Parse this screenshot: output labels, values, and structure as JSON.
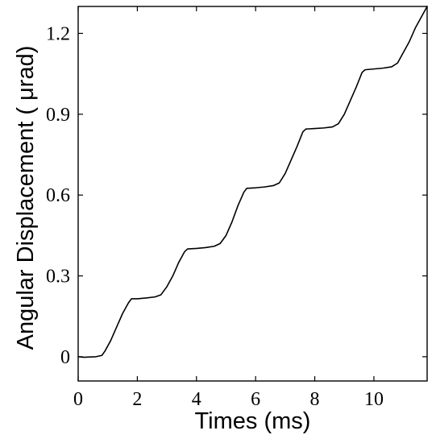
{
  "chart_data": {
    "type": "line",
    "title": "",
    "xlabel": "Times (ms)",
    "ylabel": "Angular Displacement ( μrad)",
    "xlim": [
      0,
      11.8
    ],
    "ylim": [
      -0.09,
      1.3
    ],
    "xticks": [
      0,
      2,
      4,
      6,
      8,
      10
    ],
    "xtick_labels": [
      "0",
      "2",
      "4",
      "6",
      "8",
      "10"
    ],
    "yticks": [
      0,
      0.3,
      0.6,
      0.9,
      1.2
    ],
    "ytick_labels": [
      "0",
      "0.3",
      "0.6",
      "0.9",
      "1.2"
    ],
    "grid": false,
    "legend": "none",
    "colors": {
      "line": "#000000",
      "axes": "#000000",
      "background": "#ffffff"
    },
    "series": [
      {
        "x": [
          0,
          0.2,
          0.4,
          0.6,
          0.8,
          0.9,
          1.1,
          1.3,
          1.5,
          1.7,
          1.8,
          2.0,
          2.3,
          2.6,
          2.8,
          3.0,
          3.2,
          3.4,
          3.6,
          3.7,
          4.0,
          4.3,
          4.6,
          4.8,
          5.0,
          5.2,
          5.4,
          5.6,
          5.7,
          6.0,
          6.3,
          6.6,
          6.8,
          7.0,
          7.2,
          7.4,
          7.6,
          7.7,
          8.0,
          8.3,
          8.6,
          8.8,
          9.0,
          9.2,
          9.4,
          9.6,
          9.7,
          10.0,
          10.3,
          10.6,
          10.8,
          11.0,
          11.2,
          11.4,
          11.6,
          11.8
        ],
        "values": [
          0,
          -0.002,
          -0.001,
          0.0,
          0.005,
          0.02,
          0.06,
          0.11,
          0.16,
          0.2,
          0.215,
          0.215,
          0.218,
          0.222,
          0.23,
          0.26,
          0.3,
          0.35,
          0.39,
          0.4,
          0.402,
          0.405,
          0.41,
          0.42,
          0.45,
          0.5,
          0.56,
          0.61,
          0.625,
          0.627,
          0.63,
          0.635,
          0.645,
          0.68,
          0.73,
          0.78,
          0.835,
          0.845,
          0.847,
          0.849,
          0.853,
          0.865,
          0.9,
          0.95,
          1.0,
          1.055,
          1.065,
          1.068,
          1.071,
          1.076,
          1.09,
          1.13,
          1.17,
          1.22,
          1.26,
          1.3
        ]
      }
    ]
  }
}
